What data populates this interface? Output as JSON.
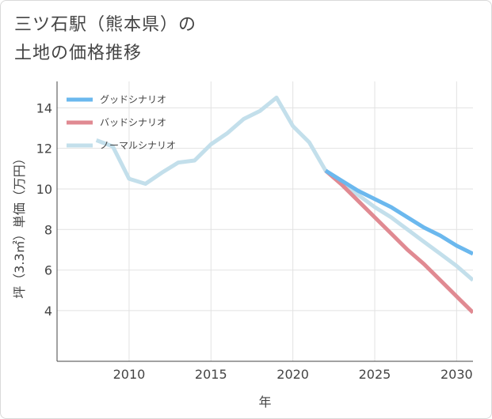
{
  "page": {
    "title_line1": "三ツ石駅（熊本県）の",
    "title_line2": "土地の価格推移"
  },
  "chart_data": {
    "type": "line",
    "xlabel": "年",
    "ylabel": "坪（3.3㎡）単価（万円）",
    "xlim": [
      2005.6,
      2031
    ],
    "ylim": [
      1.5,
      15.3
    ],
    "xticks": [
      2010,
      2015,
      2020,
      2025,
      2030
    ],
    "yticks": [
      4,
      6,
      8,
      10,
      12,
      14
    ],
    "grid": true,
    "legend_position": "top-left",
    "series": [
      {
        "name": "グッドシナリオ",
        "color": "#6bb8ee",
        "x": [
          2022,
          2023,
          2024,
          2025,
          2026,
          2027,
          2028,
          2029,
          2030,
          2031
        ],
        "y": [
          10.9,
          10.4,
          9.9,
          9.5,
          9.1,
          8.6,
          8.1,
          7.7,
          7.2,
          6.8
        ]
      },
      {
        "name": "バッドシナリオ",
        "color": "#e08a92",
        "x": [
          2022,
          2023,
          2024,
          2025,
          2026,
          2027,
          2028,
          2029,
          2030,
          2031
        ],
        "y": [
          10.9,
          10.2,
          9.4,
          8.6,
          7.8,
          7.0,
          6.3,
          5.5,
          4.7,
          3.9
        ]
      },
      {
        "name": "ノーマルシナリオ",
        "color": "#c3dfeb",
        "x": [
          2008,
          2009,
          2010,
          2011,
          2012,
          2013,
          2014,
          2015,
          2016,
          2017,
          2018,
          2019,
          2020,
          2021,
          2022,
          2023,
          2024,
          2025,
          2026,
          2027,
          2028,
          2029,
          2030,
          2031
        ],
        "y": [
          12.4,
          12.1,
          10.5,
          10.25,
          10.8,
          11.3,
          11.4,
          12.2,
          12.75,
          13.45,
          13.85,
          14.5,
          13.1,
          12.3,
          10.9,
          10.3,
          9.7,
          9.1,
          8.6,
          8.0,
          7.4,
          6.8,
          6.2,
          5.5
        ]
      }
    ]
  }
}
